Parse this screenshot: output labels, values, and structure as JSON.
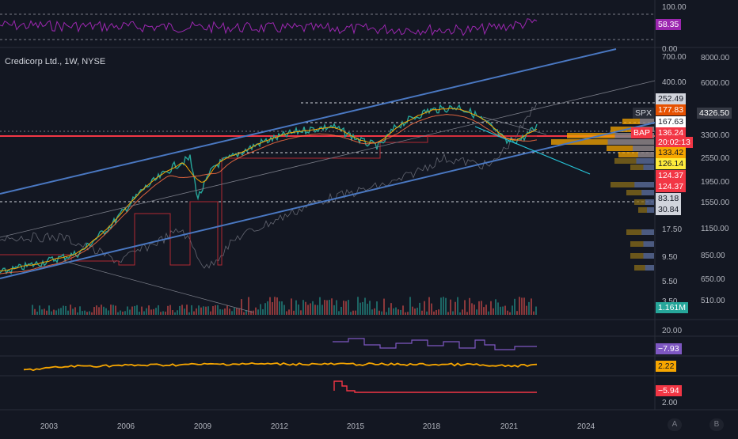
{
  "chart_title": "Credicorp Ltd., 1W, NYSE",
  "rsi_pane": {
    "axis_ticks": [
      "100.00",
      "0.00"
    ],
    "value_tag": "58.35",
    "color": "#9c27b0"
  },
  "price_axis_left": [
    "700.00",
    "400.00",
    "17.50",
    "9.50",
    "5.50",
    "3.50"
  ],
  "price_axis_right": [
    "8000.00",
    "6000.00",
    "3300.00",
    "2550.00",
    "1950.00",
    "1550.00",
    "1150.00",
    "850.00",
    "650.00",
    "510.00"
  ],
  "price_tags": [
    {
      "id": "tag-spx-value",
      "text": "4326.50",
      "bg": "#363a45",
      "fg": "#ffffff"
    },
    {
      "id": "tag-252",
      "text": "252.49",
      "bg": "#d1d4dc",
      "fg": "#131722"
    },
    {
      "id": "tag-177",
      "text": "177.83",
      "bg": "#e65100",
      "fg": "#ffffff"
    },
    {
      "id": "tag-167",
      "text": "167.63",
      "bg": "#ffffff",
      "fg": "#131722"
    },
    {
      "id": "tag-136",
      "text": "136.24",
      "bg": "#f23645",
      "fg": "#ffffff"
    },
    {
      "id": "tag-countdown",
      "text": "20:02:13",
      "bg": "#f23645",
      "fg": "#ffffff"
    },
    {
      "id": "tag-133",
      "text": "133.42",
      "bg": "#f7a600",
      "fg": "#131722"
    },
    {
      "id": "tag-126",
      "text": "126.14",
      "bg": "#ffeb3b",
      "fg": "#131722"
    },
    {
      "id": "tag-124a",
      "text": "124.37",
      "bg": "#f23645",
      "fg": "#ffffff"
    },
    {
      "id": "tag-124b",
      "text": "124.37",
      "bg": "#f23645",
      "fg": "#ffffff"
    },
    {
      "id": "tag-83",
      "text": "83.18",
      "bg": "#d1d4dc",
      "fg": "#131722"
    },
    {
      "id": "tag-30",
      "text": "30.84",
      "bg": "#d1d4dc",
      "fg": "#131722"
    },
    {
      "id": "tag-volume",
      "text": "1.161M",
      "bg": "#26a69a",
      "fg": "#ffffff"
    }
  ],
  "symbol_labels": {
    "spx": "SPX",
    "bap": "BAP"
  },
  "indicator_panes": {
    "macd": {
      "axis_tick": "20.00",
      "value_tag": "−7.93",
      "color": "#7e57c2"
    },
    "yield": {
      "value_tag": "2.22",
      "color": "#f7a600"
    },
    "rate": {
      "axis_tick": "2.00",
      "value_tag": "−5.94",
      "color": "#f23645"
    }
  },
  "time_axis": [
    "2003",
    "2006",
    "2009",
    "2012",
    "2015",
    "2018",
    "2021",
    "2024"
  ],
  "scale_buttons": [
    "A",
    "B"
  ],
  "colors": {
    "background": "#131722",
    "channel": "#4a78c2",
    "price": "#26a69a",
    "sr_line": "#f23645"
  }
}
